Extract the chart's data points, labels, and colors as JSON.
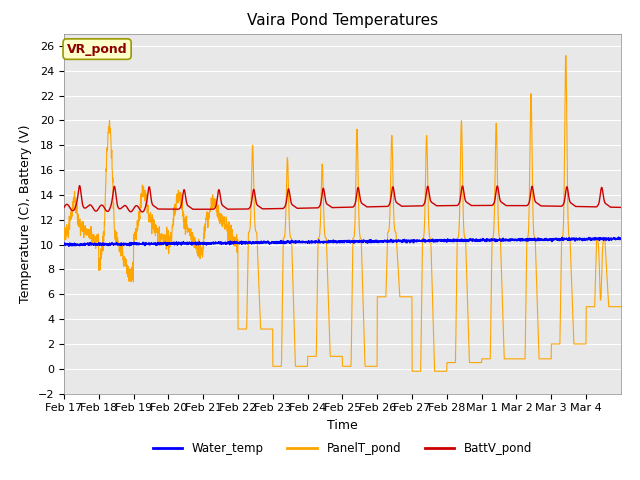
{
  "title": "Vaira Pond Temperatures",
  "xlabel": "Time",
  "ylabel": "Temperature (C), Battery (V)",
  "ylim": [
    -2,
    27
  ],
  "yticks": [
    -2,
    0,
    2,
    4,
    6,
    8,
    10,
    12,
    14,
    16,
    18,
    20,
    22,
    24,
    26
  ],
  "xtick_labels": [
    "Feb 17",
    "Feb 18",
    "Feb 19",
    "Feb 20",
    "Feb 21",
    "Feb 22",
    "Feb 23",
    "Feb 24",
    "Feb 25",
    "Feb 26",
    "Feb 27",
    "Feb 28",
    "Mar 1",
    "Mar 2",
    "Mar 3",
    "Mar 4"
  ],
  "annotation_text": "VR_pond",
  "annotation_color": "#8B0000",
  "annotation_bg": "#FFFFCC",
  "water_color": "#0000FF",
  "panel_color": "#FFA500",
  "batt_color": "#CC0000",
  "legend_labels": [
    "Water_temp",
    "PanelT_pond",
    "BattV_pond"
  ],
  "bg_color": "#E8E8E8",
  "title_fontsize": 11,
  "axis_fontsize": 9,
  "tick_fontsize": 8
}
